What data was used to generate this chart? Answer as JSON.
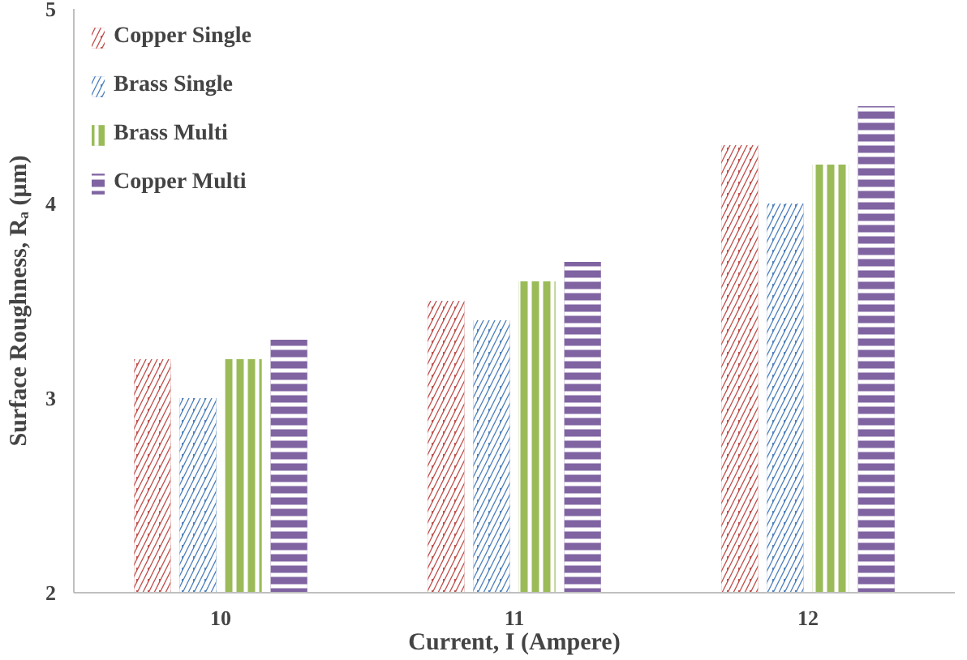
{
  "chart_data": {
    "type": "bar",
    "xlabel": "Current, I (Ampere)",
    "ylabel": "Surface Roughness, Rₐ (μm)",
    "categories": [
      "10",
      "11",
      "12"
    ],
    "series": [
      {
        "name": "Copper Single",
        "color": "#c0504d",
        "values": [
          3.2,
          3.5,
          4.3
        ]
      },
      {
        "name": "Brass Single",
        "color": "#4f81bd",
        "values": [
          3.0,
          3.4,
          4.0
        ]
      },
      {
        "name": "Brass Multi",
        "color": "#9bbb59",
        "values": [
          3.2,
          3.6,
          4.2
        ]
      },
      {
        "name": "Copper Multi",
        "color": "#8064a2",
        "values": [
          3.3,
          3.7,
          4.5
        ]
      }
    ],
    "ylim": [
      2,
      5
    ],
    "yticks": [
      2,
      3,
      4,
      5
    ],
    "grid": false,
    "legend": "top left"
  }
}
